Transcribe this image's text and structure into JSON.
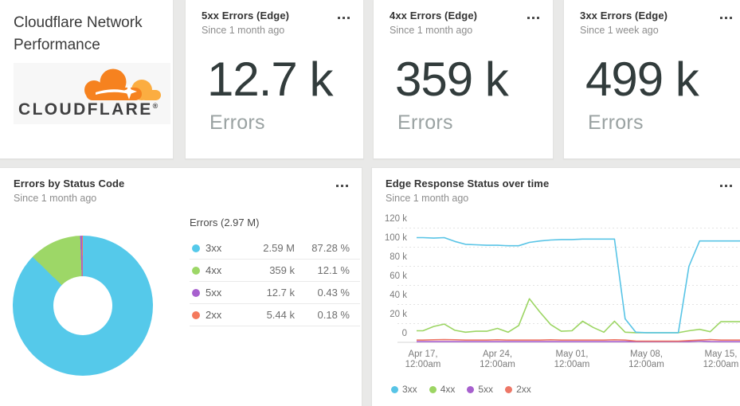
{
  "dashboard": {
    "title": "Cloudflare Network Performance",
    "logo_word": "CLOUDFLARE",
    "logo_mark": "®"
  },
  "stat_cards": [
    {
      "title": "5xx Errors (Edge)",
      "subtitle": "Since 1 month ago",
      "value": "12.7 k",
      "unit": "Errors"
    },
    {
      "title": "4xx Errors (Edge)",
      "subtitle": "Since 1 month ago",
      "value": "359 k",
      "unit": "Errors"
    },
    {
      "title": "3xx Errors (Edge)",
      "subtitle": "Since 1 week ago",
      "value": "499 k",
      "unit": "Errors"
    }
  ],
  "pie_card": {
    "title": "Errors by Status Code",
    "subtitle": "Since 1 month ago",
    "table_header": "Errors (2.97 M)",
    "rows": [
      {
        "label": "3xx",
        "value": "2.59 M",
        "percent": "87.28 %",
        "color": "#55c9ea"
      },
      {
        "label": "4xx",
        "value": "359 k",
        "percent": "12.1 %",
        "color": "#9dd767"
      },
      {
        "label": "5xx",
        "value": "12.7 k",
        "percent": "0.43 %",
        "color": "#a760ce"
      },
      {
        "label": "2xx",
        "value": "5.44 k",
        "percent": "0.18 %",
        "color": "#f4795c"
      }
    ]
  },
  "line_card": {
    "title": "Edge Response Status over time",
    "subtitle": "Since 1 month ago"
  },
  "chart_data": [
    {
      "type": "pie",
      "title": "Errors by Status Code",
      "total_label": "Errors (2.97 M)",
      "total_value": 2970000,
      "slices": [
        {
          "name": "3xx",
          "value": 2590000,
          "percent": 87.28,
          "color": "#55c9ea"
        },
        {
          "name": "4xx",
          "value": 359000,
          "percent": 12.1,
          "color": "#9dd767"
        },
        {
          "name": "5xx",
          "value": 12700,
          "percent": 0.43,
          "color": "#a760ce"
        },
        {
          "name": "2xx",
          "value": 5440,
          "percent": 0.18,
          "color": "#f4795c"
        }
      ],
      "legend_position": "right",
      "donut": true
    },
    {
      "type": "line",
      "title": "Edge Response Status over time",
      "subtitle": "Since 1 month ago",
      "ylabel": "",
      "xlabel": "",
      "values_unit": "thousands",
      "ylim_k": [
        0,
        120
      ],
      "grid": "dashed-horizontal",
      "legend_position": "bottom-left",
      "y_ticks": [
        "120 k",
        "100 k",
        "80 k",
        "60 k",
        "40 k",
        "20 k",
        "0"
      ],
      "x_ticks": [
        "Apr 17, 12:00am",
        "Apr 24, 12:00am",
        "May 01, 12:00am",
        "May 08, 12:00am",
        "May 15, 12:00am"
      ],
      "x": [
        "Apr 17",
        "Apr 18",
        "Apr 19",
        "Apr 20",
        "Apr 21",
        "Apr 22",
        "Apr 23",
        "Apr 24",
        "Apr 25",
        "Apr 26",
        "Apr 27",
        "Apr 28",
        "Apr 29",
        "Apr 30",
        "May 01",
        "May 02",
        "May 03",
        "May 04",
        "May 05",
        "May 06",
        "May 07",
        "May 08",
        "May 09",
        "May 10",
        "May 11",
        "May 12",
        "May 13",
        "May 14",
        "May 15"
      ],
      "series": [
        {
          "name": "3xx",
          "color": "#58c4e6",
          "values_k": [
            100,
            99.5,
            100,
            96,
            93,
            92.5,
            92,
            92,
            91.5,
            91.5,
            95,
            96.5,
            97.5,
            98,
            98,
            98.5,
            98.5,
            98.5,
            98.5,
            15,
            1,
            0.5,
            0.5,
            0.5,
            0.5,
            70,
            96.5,
            96.5,
            96.5
          ]
        },
        {
          "name": "4xx",
          "color": "#9cd563",
          "values_k": [
            2.5,
            7,
            9.5,
            3,
            1,
            2,
            2,
            5,
            1,
            8,
            36,
            22,
            9,
            2,
            2.5,
            12.5,
            6,
            1,
            12.5,
            1,
            0.5,
            0.5,
            0.5,
            0.5,
            0.5,
            2.5,
            4,
            1.5,
            12
          ]
        },
        {
          "name": "5xx",
          "color": "#a760ce",
          "values_k": [
            0.1,
            0.1,
            0.1,
            0.1,
            0.1,
            0.1,
            0.1,
            0.1,
            0.1,
            0.1,
            0.1,
            0.1,
            0.1,
            0.1,
            0.1,
            0.1,
            0.1,
            0.1,
            0.1,
            0.1,
            0.1,
            0.1,
            0.1,
            0.1,
            0.1,
            0.1,
            0.8,
            0.3,
            0.1
          ]
        },
        {
          "name": "2xx",
          "color": "#ed7767",
          "values_k": [
            1.5,
            1.8,
            2,
            1.8,
            1.5,
            1.5,
            1.5,
            1.8,
            1.5,
            1.5,
            1.5,
            1.5,
            1.8,
            1.5,
            1.5,
            1.5,
            1.5,
            1.5,
            1.8,
            1.5,
            0.5,
            0.3,
            0.3,
            0.3,
            0.3,
            1,
            1.5,
            2,
            1.5
          ]
        }
      ]
    }
  ]
}
